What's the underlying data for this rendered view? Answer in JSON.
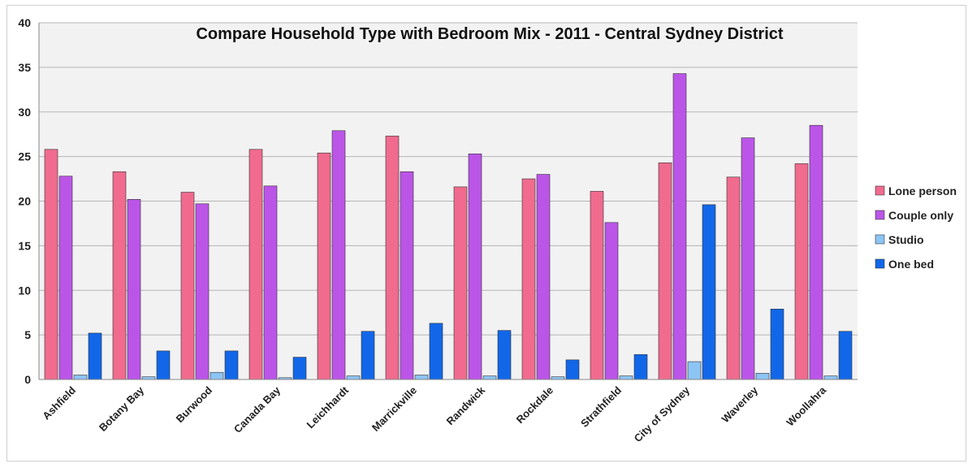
{
  "chart_data": {
    "type": "bar",
    "title": "Compare Household Type with Bedroom Mix - 2011 - Central Sydney District",
    "xlabel": "",
    "ylabel": "",
    "ylim": [
      0,
      40
    ],
    "yticks": [
      0,
      5,
      10,
      15,
      20,
      25,
      30,
      35,
      40
    ],
    "grid": true,
    "legend_position": "right",
    "categories": [
      "Ashfield",
      "Botany Bay",
      "Burwood",
      "Canada Bay",
      "Leichhardt",
      "Marrickville",
      "Randwick",
      "Rockdale",
      "Strathfield",
      "City of Sydney",
      "Waverley",
      "Woollahra"
    ],
    "series": [
      {
        "name": "Lone person",
        "color": "#f06b8e",
        "values": [
          25.8,
          23.3,
          21.0,
          25.8,
          25.4,
          27.3,
          21.6,
          22.5,
          21.1,
          24.3,
          22.7,
          24.2
        ]
      },
      {
        "name": "Couple only",
        "color": "#bb55e8",
        "values": [
          22.8,
          20.2,
          19.7,
          21.7,
          27.9,
          23.3,
          25.3,
          23.0,
          17.6,
          34.3,
          27.1,
          28.5
        ]
      },
      {
        "name": "Studio",
        "color": "#8cc4f4",
        "values": [
          0.5,
          0.3,
          0.8,
          0.2,
          0.4,
          0.5,
          0.4,
          0.3,
          0.4,
          2.0,
          0.7,
          0.4
        ]
      },
      {
        "name": "One bed",
        "color": "#1167e8",
        "values": [
          5.2,
          3.2,
          3.2,
          2.5,
          5.4,
          6.3,
          5.5,
          2.2,
          2.8,
          19.6,
          7.9,
          5.4
        ]
      }
    ]
  }
}
